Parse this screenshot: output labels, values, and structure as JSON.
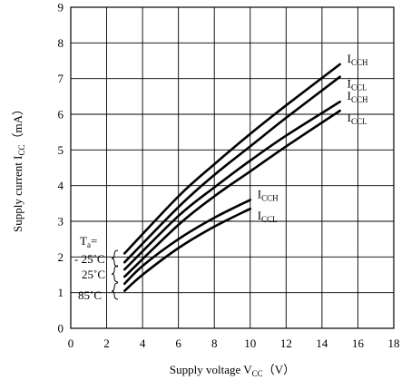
{
  "chart_data": {
    "type": "line",
    "xlabel_main": "Supply voltage V",
    "xlabel_sub": "CC",
    "xlabel_unit": "（V）",
    "ylabel_main": "Supply current I",
    "ylabel_sub": "CC",
    "ylabel_unit": "（mA）",
    "xlim": [
      0,
      18
    ],
    "ylim": [
      0,
      9
    ],
    "xticks": [
      0,
      2,
      4,
      6,
      8,
      10,
      12,
      14,
      16,
      18
    ],
    "yticks": [
      0,
      1,
      2,
      3,
      4,
      5,
      6,
      7,
      8,
      9
    ],
    "xtick_labels": [
      "0",
      "2",
      "4",
      "6",
      "8",
      "10",
      "12",
      "14",
      "16",
      "18"
    ],
    "ytick_labels": [
      "0",
      "1",
      "2",
      "3",
      "4",
      "5",
      "6",
      "7",
      "8",
      "9"
    ],
    "grid": true,
    "series": [
      {
        "label_main": "I",
        "label_sub": "CCH",
        "x": [
          3,
          6,
          8,
          10,
          12,
          15
        ],
        "y": [
          2.1,
          3.7,
          4.6,
          5.45,
          6.25,
          7.4
        ]
      },
      {
        "label_main": "I",
        "label_sub": "CCL",
        "x": [
          3,
          6,
          8,
          10,
          12,
          15
        ],
        "y": [
          1.85,
          3.4,
          4.3,
          5.1,
          5.9,
          7.05
        ]
      },
      {
        "label_main": "I",
        "label_sub": "CCH",
        "x": [
          3,
          6,
          8,
          10,
          12,
          15
        ],
        "y": [
          1.65,
          3.15,
          3.95,
          4.7,
          5.4,
          6.35
        ]
      },
      {
        "label_main": "I",
        "label_sub": "CCL",
        "x": [
          3,
          6,
          8,
          10,
          12,
          15
        ],
        "y": [
          1.45,
          2.9,
          3.7,
          4.4,
          5.1,
          6.1
        ]
      },
      {
        "label_main": "I",
        "label_sub": "CCH",
        "x": [
          3,
          4,
          6,
          8,
          10
        ],
        "y": [
          1.25,
          1.75,
          2.5,
          3.1,
          3.6
        ]
      },
      {
        "label_main": "I",
        "label_sub": "CCL",
        "x": [
          3,
          4,
          6,
          8,
          10
        ],
        "y": [
          1.05,
          1.5,
          2.25,
          2.85,
          3.35
        ]
      }
    ],
    "annotations": {
      "ta_main": "T",
      "ta_sub": "a",
      "ta_eq": "=",
      "temps": [
        "- 25˚C",
        "25˚C",
        "85˚C"
      ]
    }
  }
}
